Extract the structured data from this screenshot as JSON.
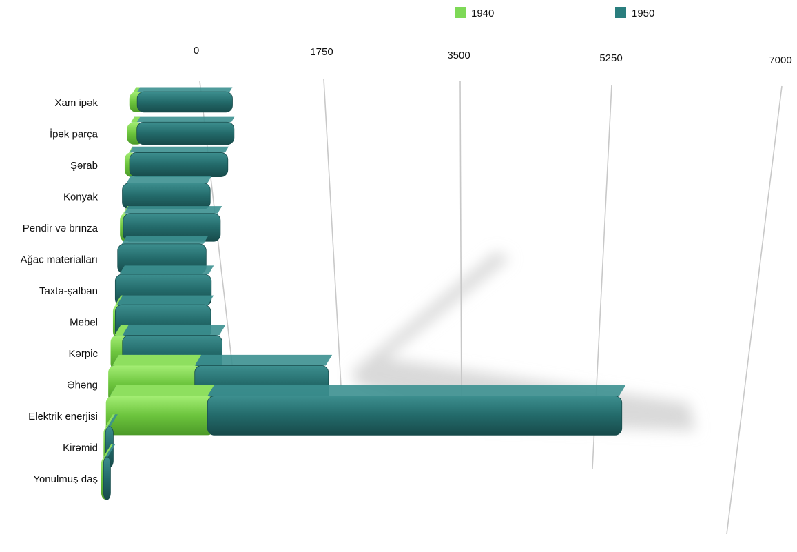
{
  "chart_data": {
    "type": "bar",
    "orientation": "horizontal",
    "stacked": true,
    "style": "3d-perspective",
    "title": "",
    "xlabel": "",
    "ylabel": "",
    "xlim": [
      0,
      7000
    ],
    "grid": true,
    "legend_position": "top-right",
    "x_ticks": [
      "0",
      "1750",
      "3500",
      "5250",
      "7000"
    ],
    "categories": [
      "Xam ipək",
      "İpək parça",
      "Şərab",
      "Konyak",
      "Pendir və brınza",
      "Ağac materialları",
      "Taxta-şalban",
      "Mebel",
      "Kərpic",
      "Əhəng",
      "Elektrik enerjisi",
      "Kirəmid",
      "Yonulmuş daş"
    ],
    "series": [
      {
        "name": "1940",
        "color": "#7ed957",
        "values": [
          95,
          120,
          60,
          0,
          40,
          0,
          0,
          30,
          150,
          1100,
          1300,
          25,
          30
        ]
      },
      {
        "name": "1950",
        "color": "#2a7e7e",
        "values": [
          1150,
          1180,
          1200,
          1080,
          1200,
          1100,
          1200,
          1200,
          1260,
          1700,
          5300,
          100,
          90
        ]
      }
    ]
  }
}
